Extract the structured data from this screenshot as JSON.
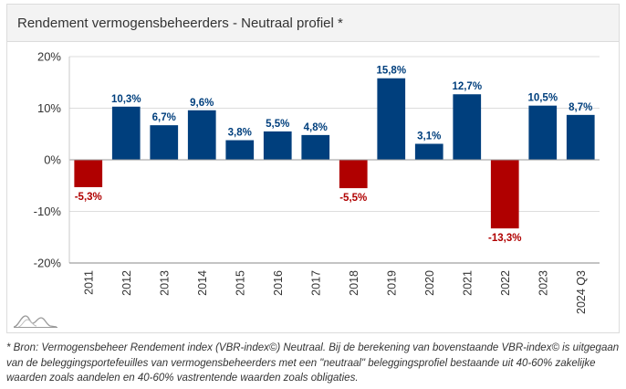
{
  "header": {
    "title": "Rendement vermogensbeheerders - Neutraal profiel *"
  },
  "footnote": "* Bron: Vermogensbeheer Rendement index (VBR-index©) Neutraal. Bij de berekening van bovenstaande VBR-index© is uitgegaan van de beleggingsportefeuilles van vermogensbeheerders met een \"neutraal\" beleggingsprofiel bestaande uit 40-60% zakelijke waarden zoals aandelen en 40-60% vastrentende waarden zoals obligaties.",
  "colors": {
    "positive": "#003f7d",
    "negative": "#b00000",
    "grid": "#dddddd",
    "axis": "#888888"
  },
  "logo_icon": "mountain-logo-icon",
  "chart_data": {
    "type": "bar",
    "title": "Rendement vermogensbeheerders - Neutraal profiel *",
    "xlabel": "",
    "ylabel": "",
    "ylim": [
      -20,
      20
    ],
    "yticks": [
      20,
      10,
      0,
      -10,
      -20
    ],
    "ytick_labels": [
      "20%",
      "10%",
      "0%",
      "-10%",
      "-20%"
    ],
    "grid": true,
    "categories": [
      "2011",
      "2012",
      "2013",
      "2014",
      "2015",
      "2016",
      "2017",
      "2018",
      "2019",
      "2020",
      "2021",
      "2022",
      "2023",
      "2024 Q3"
    ],
    "values": [
      -5.3,
      10.3,
      6.7,
      9.6,
      3.8,
      5.5,
      4.8,
      -5.5,
      15.8,
      3.1,
      12.7,
      -13.3,
      10.5,
      8.7
    ],
    "labels": [
      "-5,3%",
      "10,3%",
      "6,7%",
      "9,6%",
      "3,8%",
      "5,5%",
      "4,8%",
      "-5,5%",
      "15,8%",
      "3,1%",
      "12,7%",
      "-13,3%",
      "10,5%",
      "8,7%"
    ]
  }
}
